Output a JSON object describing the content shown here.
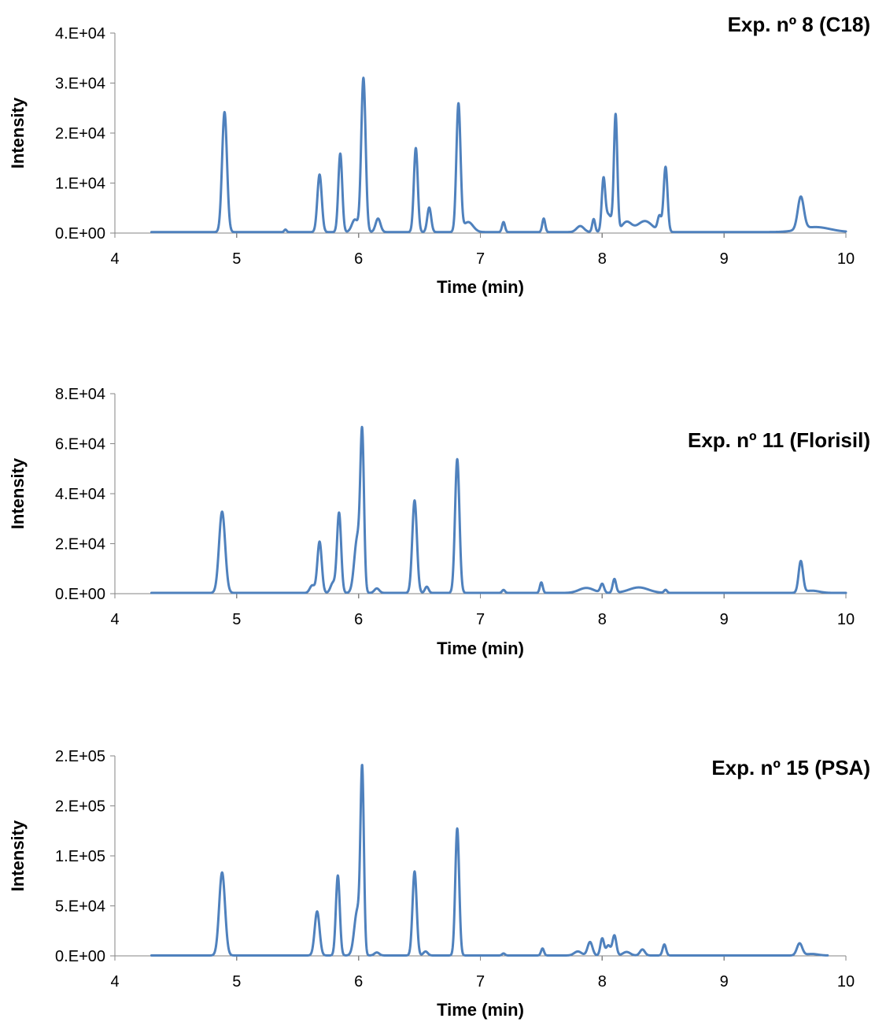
{
  "chart_data": [
    {
      "type": "line",
      "title": "Exp. nº 8 (C18)",
      "title_pos": "top-right",
      "xlabel": "Time (min)",
      "ylabel": "Intensity",
      "xlim": [
        4,
        10
      ],
      "ylim": [
        0,
        40000
      ],
      "x_ticks": [
        "4",
        "5",
        "6",
        "7",
        "8",
        "9",
        "10"
      ],
      "y_ticks": [
        "0.E+00",
        "1.E+04",
        "2.E+04",
        "3.E+04",
        "4.E+04"
      ],
      "grid": false,
      "color": "#4F81BD",
      "series": [
        {
          "x_range": [
            4.3,
            10.0
          ],
          "baseline": 200,
          "peaks": [
            {
              "t": 4.9,
              "h": 24000,
              "w": 0.02
            },
            {
              "t": 5.4,
              "h": 500,
              "w": 0.01
            },
            {
              "t": 5.68,
              "h": 11500,
              "w": 0.018
            },
            {
              "t": 5.85,
              "h": 15700,
              "w": 0.016
            },
            {
              "t": 5.97,
              "h": 2500,
              "w": 0.025
            },
            {
              "t": 6.04,
              "h": 30800,
              "w": 0.018
            },
            {
              "t": 6.16,
              "h": 2700,
              "w": 0.02
            },
            {
              "t": 6.47,
              "h": 16800,
              "w": 0.016
            },
            {
              "t": 6.58,
              "h": 4900,
              "w": 0.016
            },
            {
              "t": 6.82,
              "h": 25500,
              "w": 0.017
            },
            {
              "t": 6.9,
              "h": 2000,
              "w": 0.04
            },
            {
              "t": 7.19,
              "h": 2000,
              "w": 0.012
            },
            {
              "t": 7.52,
              "h": 2700,
              "w": 0.012
            },
            {
              "t": 7.82,
              "h": 1200,
              "w": 0.03
            },
            {
              "t": 7.93,
              "h": 2600,
              "w": 0.012
            },
            {
              "t": 8.01,
              "h": 9500,
              "w": 0.014
            },
            {
              "t": 8.05,
              "h": 3500,
              "w": 0.03
            },
            {
              "t": 8.11,
              "h": 23000,
              "w": 0.014
            },
            {
              "t": 8.2,
              "h": 2000,
              "w": 0.04
            },
            {
              "t": 8.35,
              "h": 2200,
              "w": 0.06
            },
            {
              "t": 8.47,
              "h": 3000,
              "w": 0.015
            },
            {
              "t": 8.52,
              "h": 13000,
              "w": 0.016
            },
            {
              "t": 9.63,
              "h": 6500,
              "w": 0.025
            },
            {
              "t": 9.75,
              "h": 1000,
              "w": 0.12
            }
          ]
        }
      ]
    },
    {
      "type": "line",
      "title": "Exp. nº 11 (Florisil)",
      "title_pos": "upper-right",
      "xlabel": "Time (min)",
      "ylabel": "Intensity",
      "xlim": [
        4,
        10
      ],
      "ylim": [
        0,
        80000
      ],
      "x_ticks": [
        "4",
        "5",
        "6",
        "7",
        "8",
        "9",
        "10"
      ],
      "y_ticks": [
        "0.E+00",
        "2.E+04",
        "4.E+04",
        "6.E+04",
        "8.E+04"
      ],
      "grid": false,
      "color": "#4F81BD",
      "series": [
        {
          "x_range": [
            4.3,
            10.0
          ],
          "baseline": 300,
          "peaks": [
            {
              "t": 4.88,
              "h": 32500,
              "w": 0.025
            },
            {
              "t": 5.62,
              "h": 3000,
              "w": 0.02
            },
            {
              "t": 5.68,
              "h": 20500,
              "w": 0.018
            },
            {
              "t": 5.79,
              "h": 4000,
              "w": 0.02
            },
            {
              "t": 5.84,
              "h": 32000,
              "w": 0.017
            },
            {
              "t": 5.99,
              "h": 22000,
              "w": 0.025
            },
            {
              "t": 6.03,
              "h": 60000,
              "w": 0.015
            },
            {
              "t": 6.15,
              "h": 1800,
              "w": 0.02
            },
            {
              "t": 6.46,
              "h": 37000,
              "w": 0.019
            },
            {
              "t": 6.56,
              "h": 2500,
              "w": 0.015
            },
            {
              "t": 6.81,
              "h": 53500,
              "w": 0.018
            },
            {
              "t": 7.19,
              "h": 1200,
              "w": 0.012
            },
            {
              "t": 7.5,
              "h": 4200,
              "w": 0.012
            },
            {
              "t": 7.87,
              "h": 2000,
              "w": 0.06
            },
            {
              "t": 8.0,
              "h": 3500,
              "w": 0.015
            },
            {
              "t": 8.1,
              "h": 5500,
              "w": 0.014
            },
            {
              "t": 8.3,
              "h": 2200,
              "w": 0.08
            },
            {
              "t": 8.52,
              "h": 1200,
              "w": 0.012
            },
            {
              "t": 9.63,
              "h": 12500,
              "w": 0.018
            },
            {
              "t": 9.72,
              "h": 900,
              "w": 0.06
            }
          ]
        }
      ]
    },
    {
      "type": "line",
      "title": "Exp. nº 15 (PSA)",
      "title_pos": "upper-right",
      "xlabel": "Time (min)",
      "ylabel": "Intensity",
      "xlim": [
        4,
        10
      ],
      "ylim": [
        0,
        200000
      ],
      "x_ticks": [
        "4",
        "5",
        "6",
        "7",
        "8",
        "9",
        "10"
      ],
      "y_ticks": [
        "0.E+00",
        "5.E+04",
        "1.E+05",
        "2.E+05",
        "2.E+05"
      ],
      "grid": false,
      "color": "#4F81BD",
      "series": [
        {
          "x_range": [
            4.3,
            9.85
          ],
          "baseline": 400,
          "peaks": [
            {
              "t": 4.88,
              "h": 83000,
              "w": 0.024
            },
            {
              "t": 5.66,
              "h": 44000,
              "w": 0.02
            },
            {
              "t": 5.83,
              "h": 80000,
              "w": 0.016
            },
            {
              "t": 5.99,
              "h": 45000,
              "w": 0.025
            },
            {
              "t": 6.03,
              "h": 178000,
              "w": 0.014
            },
            {
              "t": 6.15,
              "h": 3000,
              "w": 0.02
            },
            {
              "t": 6.46,
              "h": 84000,
              "w": 0.017
            },
            {
              "t": 6.55,
              "h": 4000,
              "w": 0.018
            },
            {
              "t": 6.81,
              "h": 127000,
              "w": 0.016
            },
            {
              "t": 7.19,
              "h": 2000,
              "w": 0.012
            },
            {
              "t": 7.51,
              "h": 7000,
              "w": 0.012
            },
            {
              "t": 7.8,
              "h": 4000,
              "w": 0.03
            },
            {
              "t": 7.9,
              "h": 13500,
              "w": 0.02
            },
            {
              "t": 8.0,
              "h": 17000,
              "w": 0.015
            },
            {
              "t": 8.05,
              "h": 10000,
              "w": 0.018
            },
            {
              "t": 8.1,
              "h": 20000,
              "w": 0.016
            },
            {
              "t": 8.2,
              "h": 3500,
              "w": 0.03
            },
            {
              "t": 8.33,
              "h": 6000,
              "w": 0.02
            },
            {
              "t": 8.51,
              "h": 11000,
              "w": 0.014
            },
            {
              "t": 9.62,
              "h": 12000,
              "w": 0.022
            },
            {
              "t": 9.72,
              "h": 1500,
              "w": 0.05
            }
          ]
        }
      ]
    }
  ]
}
